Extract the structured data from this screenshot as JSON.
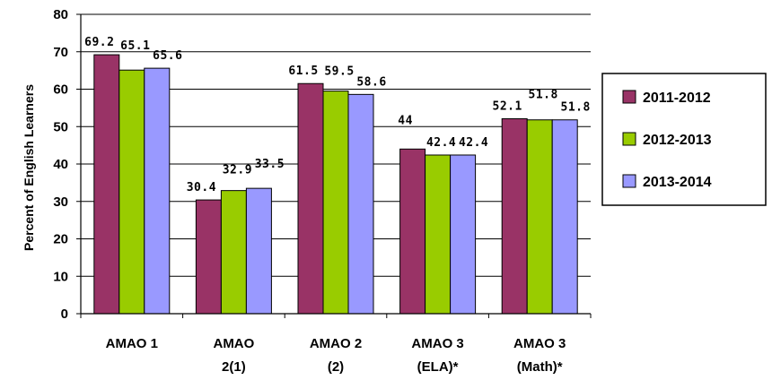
{
  "chart_data": {
    "type": "bar",
    "ylabel": "Percent of English Learners",
    "ylim": [
      0,
      80
    ],
    "yticks": [
      0,
      10,
      20,
      30,
      40,
      50,
      60,
      70,
      80
    ],
    "grid": true,
    "legend_position": "right",
    "categories": [
      [
        "AMAO 1"
      ],
      [
        "AMAO",
        "2(1)"
      ],
      [
        "AMAO 2",
        "(2)"
      ],
      [
        "AMAO 3",
        "(ELA)*"
      ],
      [
        "AMAO 3",
        "(Math)*"
      ]
    ],
    "series": [
      {
        "name": "2011-2012",
        "color": "#993366",
        "values": [
          69.2,
          30.4,
          61.5,
          44,
          52.1
        ]
      },
      {
        "name": "2012-2013",
        "color": "#99cc00",
        "values": [
          65.1,
          32.9,
          59.5,
          42.4,
          51.8
        ]
      },
      {
        "name": "2013-2014",
        "color": "#9999ff",
        "values": [
          65.6,
          33.5,
          58.6,
          42.4,
          51.8
        ]
      }
    ]
  }
}
